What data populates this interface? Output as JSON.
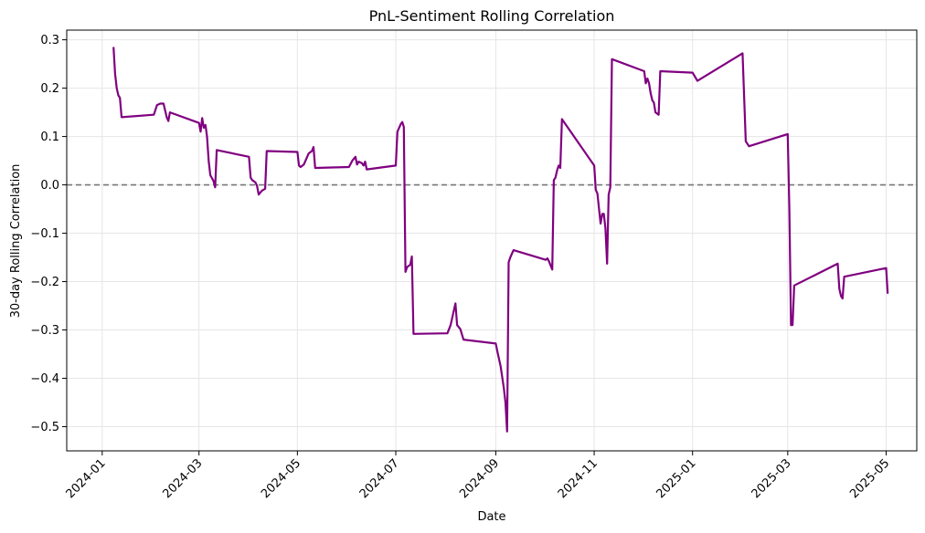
{
  "chart_data": {
    "type": "line",
    "title": "PnL-Sentiment Rolling Correlation",
    "xlabel": "Date",
    "ylabel": "30-day Rolling Correlation",
    "xlim": [
      "2023-12-10",
      "2025-05-20"
    ],
    "ylim": [
      -0.55,
      0.32
    ],
    "x_ticks": [
      "2024-01",
      "2024-03",
      "2024-05",
      "2024-07",
      "2024-09",
      "2024-11",
      "2025-01",
      "2025-03",
      "2025-05"
    ],
    "y_ticks": [
      "0.3",
      "0.2",
      "0.1",
      "0.0",
      "−0.1",
      "−0.2",
      "−0.3",
      "−0.4",
      "−0.5"
    ],
    "y_tick_values": [
      0.3,
      0.2,
      0.1,
      0.0,
      -0.1,
      -0.2,
      -0.3,
      -0.4,
      -0.5
    ],
    "grid": true,
    "reference_line": {
      "y": 0.0,
      "style": "dashed",
      "color": "#777777"
    },
    "series": [
      {
        "color": "#800080",
        "points": [
          [
            "2024-01-08",
            0.285
          ],
          [
            "2024-01-09",
            0.23
          ],
          [
            "2024-01-10",
            0.2
          ],
          [
            "2024-01-11",
            0.185
          ],
          [
            "2024-01-12",
            0.18
          ],
          [
            "2024-01-13",
            0.14
          ],
          [
            "2024-02-02",
            0.145
          ],
          [
            "2024-02-04",
            0.165
          ],
          [
            "2024-02-06",
            0.168
          ],
          [
            "2024-02-08",
            0.168
          ],
          [
            "2024-02-10",
            0.14
          ],
          [
            "2024-02-11",
            0.132
          ],
          [
            "2024-02-12",
            0.15
          ],
          [
            "2024-03-01",
            0.128
          ],
          [
            "2024-03-02",
            0.11
          ],
          [
            "2024-03-03",
            0.138
          ],
          [
            "2024-03-04",
            0.118
          ],
          [
            "2024-03-05",
            0.124
          ],
          [
            "2024-03-06",
            0.1
          ],
          [
            "2024-03-07",
            0.05
          ],
          [
            "2024-03-08",
            0.02
          ],
          [
            "2024-03-10",
            0.008
          ],
          [
            "2024-03-11",
            -0.005
          ],
          [
            "2024-03-12",
            0.072
          ],
          [
            "2024-04-01",
            0.058
          ],
          [
            "2024-04-02",
            0.015
          ],
          [
            "2024-04-03",
            0.01
          ],
          [
            "2024-04-05",
            0.005
          ],
          [
            "2024-04-06",
            -0.002
          ],
          [
            "2024-04-07",
            -0.02
          ],
          [
            "2024-04-09",
            -0.012
          ],
          [
            "2024-04-11",
            -0.008
          ],
          [
            "2024-04-12",
            0.07
          ],
          [
            "2024-05-01",
            0.068
          ],
          [
            "2024-05-02",
            0.04
          ],
          [
            "2024-05-03",
            0.037
          ],
          [
            "2024-05-05",
            0.042
          ],
          [
            "2024-05-08",
            0.065
          ],
          [
            "2024-05-10",
            0.07
          ],
          [
            "2024-05-11",
            0.078
          ],
          [
            "2024-05-12",
            0.035
          ],
          [
            "2024-06-02",
            0.037
          ],
          [
            "2024-06-04",
            0.05
          ],
          [
            "2024-06-06",
            0.058
          ],
          [
            "2024-06-07",
            0.042
          ],
          [
            "2024-06-08",
            0.048
          ],
          [
            "2024-06-10",
            0.045
          ],
          [
            "2024-06-11",
            0.04
          ],
          [
            "2024-06-12",
            0.048
          ],
          [
            "2024-06-13",
            0.032
          ],
          [
            "2024-07-01",
            0.04
          ],
          [
            "2024-07-02",
            0.11
          ],
          [
            "2024-07-04",
            0.125
          ],
          [
            "2024-07-05",
            0.13
          ],
          [
            "2024-07-06",
            0.12
          ],
          [
            "2024-07-07",
            -0.18
          ],
          [
            "2024-07-08",
            -0.17
          ],
          [
            "2024-07-10",
            -0.165
          ],
          [
            "2024-07-11",
            -0.148
          ],
          [
            "2024-07-12",
            -0.308
          ],
          [
            "2024-08-02",
            -0.307
          ],
          [
            "2024-08-04",
            -0.29
          ],
          [
            "2024-08-06",
            -0.26
          ],
          [
            "2024-08-07",
            -0.245
          ],
          [
            "2024-08-08",
            -0.29
          ],
          [
            "2024-08-10",
            -0.298
          ],
          [
            "2024-08-12",
            -0.32
          ],
          [
            "2024-09-01",
            -0.328
          ],
          [
            "2024-09-02",
            -0.345
          ],
          [
            "2024-09-04",
            -0.375
          ],
          [
            "2024-09-06",
            -0.42
          ],
          [
            "2024-09-07",
            -0.45
          ],
          [
            "2024-09-08",
            -0.51
          ],
          [
            "2024-09-09",
            -0.16
          ],
          [
            "2024-09-10",
            -0.15
          ],
          [
            "2024-09-12",
            -0.135
          ],
          [
            "2024-10-02",
            -0.155
          ],
          [
            "2024-10-03",
            -0.152
          ],
          [
            "2024-10-04",
            -0.158
          ],
          [
            "2024-10-06",
            -0.175
          ],
          [
            "2024-10-07",
            0.01
          ],
          [
            "2024-10-08",
            0.015
          ],
          [
            "2024-10-09",
            0.03
          ],
          [
            "2024-10-10",
            0.04
          ],
          [
            "2024-10-11",
            0.035
          ],
          [
            "2024-10-12",
            0.136
          ],
          [
            "2024-11-01",
            0.04
          ],
          [
            "2024-11-02",
            -0.01
          ],
          [
            "2024-11-03",
            -0.018
          ],
          [
            "2024-11-04",
            -0.05
          ],
          [
            "2024-11-05",
            -0.08
          ],
          [
            "2024-11-06",
            -0.06
          ],
          [
            "2024-11-07",
            -0.06
          ],
          [
            "2024-11-08",
            -0.09
          ],
          [
            "2024-11-09",
            -0.163
          ],
          [
            "2024-11-10",
            -0.02
          ],
          [
            "2024-11-11",
            -0.005
          ],
          [
            "2024-11-12",
            0.26
          ],
          [
            "2024-12-02",
            0.235
          ],
          [
            "2024-12-03",
            0.21
          ],
          [
            "2024-12-04",
            0.22
          ],
          [
            "2024-12-05",
            0.21
          ],
          [
            "2024-12-06",
            0.19
          ],
          [
            "2024-12-07",
            0.175
          ],
          [
            "2024-12-08",
            0.17
          ],
          [
            "2024-12-09",
            0.15
          ],
          [
            "2024-12-11",
            0.145
          ],
          [
            "2024-12-12",
            0.235
          ],
          [
            "2025-01-01",
            0.232
          ],
          [
            "2025-01-04",
            0.215
          ],
          [
            "2025-02-01",
            0.272
          ],
          [
            "2025-02-03",
            0.09
          ],
          [
            "2025-02-05",
            0.08
          ],
          [
            "2025-03-01",
            0.105
          ],
          [
            "2025-03-02",
            -0.05
          ],
          [
            "2025-03-03",
            -0.29
          ],
          [
            "2025-03-04",
            -0.29
          ],
          [
            "2025-03-05",
            -0.208
          ],
          [
            "2025-04-01",
            -0.163
          ],
          [
            "2025-04-02",
            -0.215
          ],
          [
            "2025-04-03",
            -0.23
          ],
          [
            "2025-04-04",
            -0.235
          ],
          [
            "2025-04-05",
            -0.19
          ],
          [
            "2025-05-01",
            -0.172
          ],
          [
            "2025-05-02",
            -0.225
          ]
        ]
      }
    ]
  }
}
